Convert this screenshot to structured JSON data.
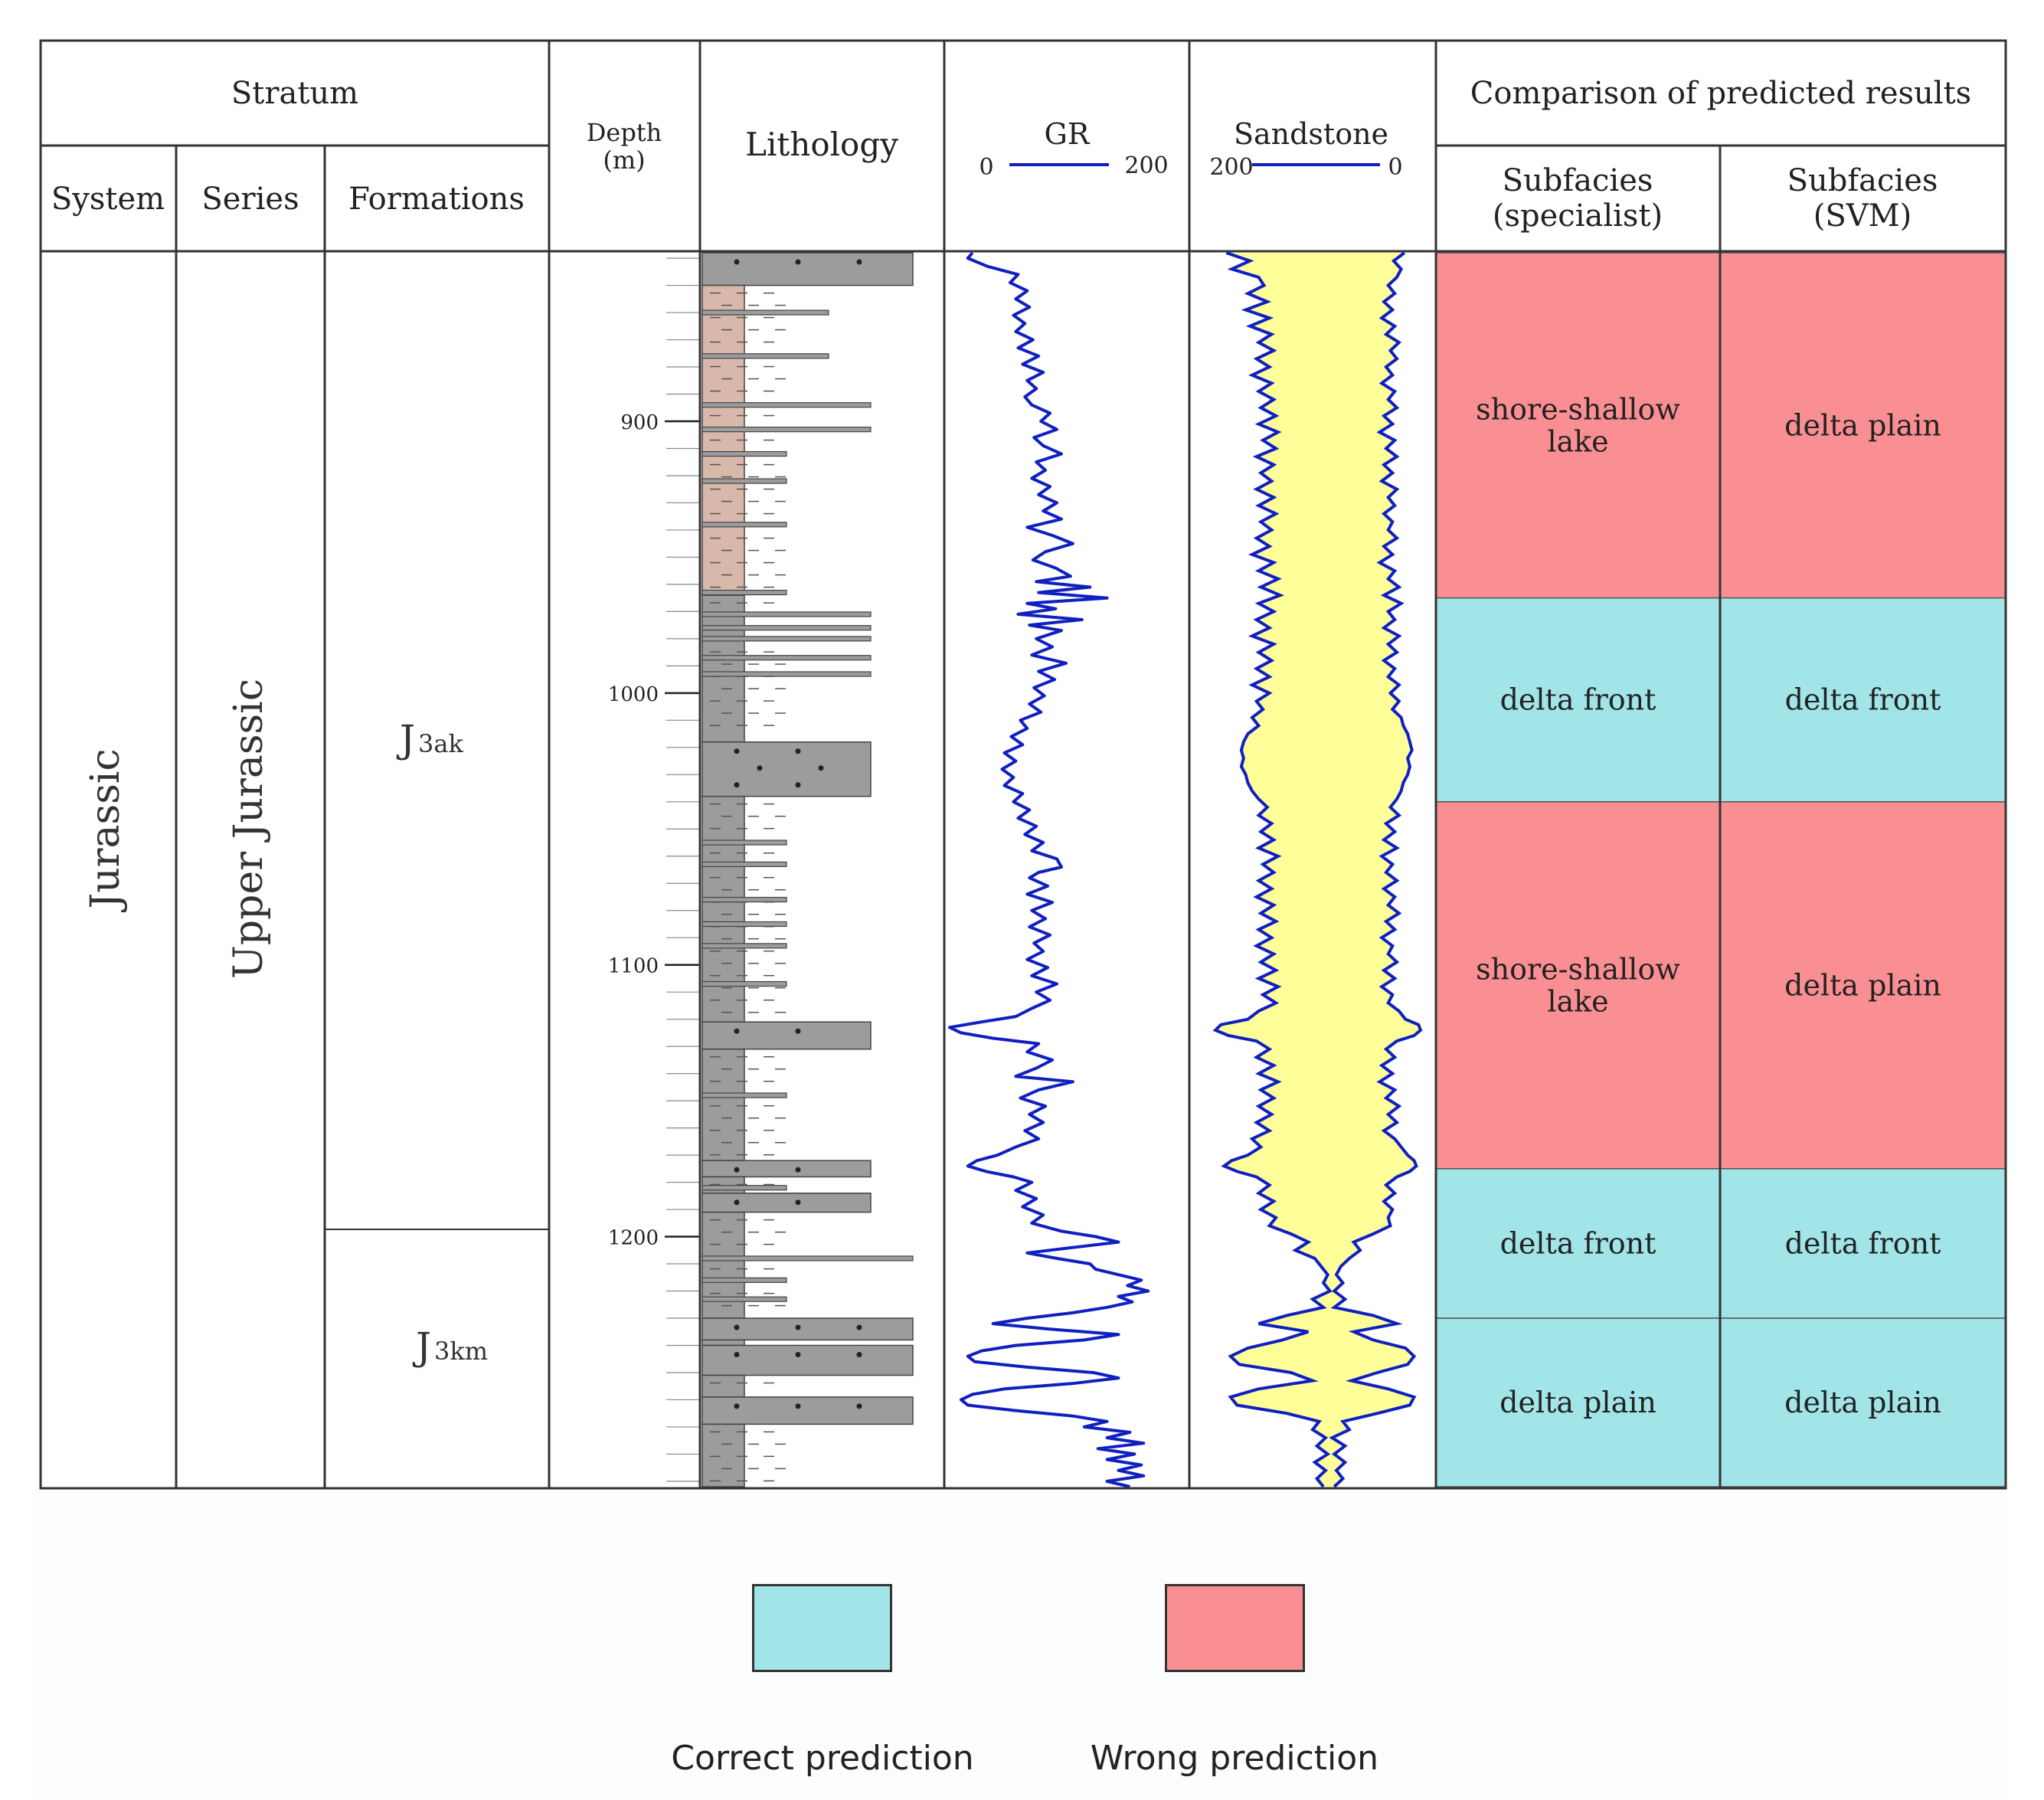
{
  "header": {
    "stratum": "Stratum",
    "system": "System",
    "series": "Series",
    "formations": "Formations",
    "depth": "Depth",
    "depth_unit": "(m)",
    "lithology": "Lithology",
    "gr": {
      "title": "GR",
      "min_label": "0",
      "max_label": "200"
    },
    "sandstone": {
      "title": "Sandstone",
      "left_label": "200",
      "right_label": "0"
    },
    "comparison": "Comparison of predicted results",
    "specialist_l1": "Subfacies",
    "specialist_l2": "(specialist)",
    "svm_l1": "Subfacies",
    "svm_l2": "(SVM)"
  },
  "column_values": {
    "system": "Jurassic",
    "series": "Upper Jurassic",
    "formations": [
      {
        "base": "J",
        "sub": "3ak"
      },
      {
        "base": "J",
        "sub": "3km"
      }
    ]
  },
  "depth_axis": {
    "min": 838,
    "max": 1292,
    "ticks": [
      "900",
      "1000",
      "1100",
      "1200"
    ]
  },
  "colors": {
    "correct": "#a2e5e9",
    "wrong": "#fa8f93",
    "sand_fill": "#ffff99",
    "curve": "#1020c0",
    "shale": "#d8b8aa",
    "mudstone": "#9c9c9c"
  },
  "facies": [
    {
      "top": 838,
      "bottom": 965,
      "specialist": [
        "shore-shallow",
        "lake"
      ],
      "svm": [
        "delta plain"
      ],
      "status": "wrong"
    },
    {
      "top": 965,
      "bottom": 1040,
      "specialist": [
        "delta front"
      ],
      "svm": [
        "delta front"
      ],
      "status": "correct"
    },
    {
      "top": 1040,
      "bottom": 1175,
      "specialist": [
        "shore-shallow",
        "lake"
      ],
      "svm": [
        "delta plain"
      ],
      "status": "wrong"
    },
    {
      "top": 1175,
      "bottom": 1230,
      "specialist": [
        "delta front"
      ],
      "svm": [
        "delta front"
      ],
      "status": "correct"
    },
    {
      "top": 1230,
      "bottom": 1292,
      "specialist": [
        "delta plain"
      ],
      "svm": [
        "delta plain"
      ],
      "status": "correct"
    }
  ],
  "lithology_beds": [
    {
      "top": 838,
      "bottom": 850,
      "type": "sandstone",
      "grain": 5
    },
    {
      "top": 850,
      "bottom": 964,
      "type": "shale",
      "grain": 1
    },
    {
      "top": 964,
      "bottom": 1018,
      "type": "mudstone",
      "grain": 1
    },
    {
      "top": 1018,
      "bottom": 1038,
      "type": "sandstone",
      "grain": 4
    },
    {
      "top": 1038,
      "bottom": 1121,
      "type": "mudstone",
      "grain": 1
    },
    {
      "top": 1121,
      "bottom": 1131,
      "type": "sandstone",
      "grain": 4
    },
    {
      "top": 1131,
      "bottom": 1172,
      "type": "mudstone",
      "grain": 1
    },
    {
      "top": 1172,
      "bottom": 1178,
      "type": "sandstone",
      "grain": 4
    },
    {
      "top": 1178,
      "bottom": 1184,
      "type": "mudstone",
      "grain": 1
    },
    {
      "top": 1184,
      "bottom": 1191,
      "type": "sandstone",
      "grain": 4
    },
    {
      "top": 1191,
      "bottom": 1230,
      "type": "mudstone",
      "grain": 1
    },
    {
      "top": 1230,
      "bottom": 1238,
      "type": "sandstone",
      "grain": 5
    },
    {
      "top": 1238,
      "bottom": 1240,
      "type": "mudstone",
      "grain": 1
    },
    {
      "top": 1240,
      "bottom": 1251,
      "type": "sandstone",
      "grain": 5
    },
    {
      "top": 1251,
      "bottom": 1259,
      "type": "mudstone",
      "grain": 1
    },
    {
      "top": 1259,
      "bottom": 1269,
      "type": "sandstone",
      "grain": 5
    },
    {
      "top": 1269,
      "bottom": 1292,
      "type": "mudstone",
      "grain": 1
    }
  ],
  "thin_beds": [
    {
      "depth": 860,
      "grain": 3
    },
    {
      "depth": 876,
      "grain": 3
    },
    {
      "depth": 894,
      "grain": 4
    },
    {
      "depth": 903,
      "grain": 4
    },
    {
      "depth": 912,
      "grain": 2
    },
    {
      "depth": 922,
      "grain": 2
    },
    {
      "depth": 938,
      "grain": 2
    },
    {
      "depth": 963,
      "grain": 2
    },
    {
      "depth": 971,
      "grain": 4
    },
    {
      "depth": 976,
      "grain": 4
    },
    {
      "depth": 980,
      "grain": 4
    },
    {
      "depth": 987,
      "grain": 4
    },
    {
      "depth": 993,
      "grain": 4
    },
    {
      "depth": 1055,
      "grain": 2
    },
    {
      "depth": 1063,
      "grain": 2
    },
    {
      "depth": 1076,
      "grain": 2
    },
    {
      "depth": 1085,
      "grain": 2
    },
    {
      "depth": 1093,
      "grain": 2
    },
    {
      "depth": 1107,
      "grain": 2
    },
    {
      "depth": 1148,
      "grain": 2
    },
    {
      "depth": 1182,
      "grain": 2
    },
    {
      "depth": 1208,
      "grain": 5
    },
    {
      "depth": 1216,
      "grain": 2
    },
    {
      "depth": 1223,
      "grain": 2
    }
  ],
  "gr_log": [
    [
      838,
      22
    ],
    [
      840,
      18
    ],
    [
      843,
      35
    ],
    [
      846,
      62
    ],
    [
      849,
      55
    ],
    [
      852,
      70
    ],
    [
      855,
      60
    ],
    [
      858,
      72
    ],
    [
      861,
      58
    ],
    [
      864,
      68
    ],
    [
      867,
      60
    ],
    [
      870,
      75
    ],
    [
      873,
      62
    ],
    [
      876,
      80
    ],
    [
      879,
      66
    ],
    [
      882,
      84
    ],
    [
      885,
      70
    ],
    [
      888,
      78
    ],
    [
      891,
      68
    ],
    [
      894,
      74
    ],
    [
      897,
      90
    ],
    [
      900,
      82
    ],
    [
      903,
      96
    ],
    [
      906,
      76
    ],
    [
      909,
      84
    ],
    [
      912,
      100
    ],
    [
      915,
      78
    ],
    [
      918,
      86
    ],
    [
      921,
      74
    ],
    [
      924,
      90
    ],
    [
      927,
      80
    ],
    [
      930,
      96
    ],
    [
      933,
      84
    ],
    [
      936,
      100
    ],
    [
      939,
      70
    ],
    [
      942,
      92
    ],
    [
      945,
      110
    ],
    [
      948,
      86
    ],
    [
      951,
      75
    ],
    [
      954,
      95
    ],
    [
      957,
      108
    ],
    [
      959,
      78
    ],
    [
      961,
      125
    ],
    [
      963,
      80
    ],
    [
      965,
      140
    ],
    [
      967,
      70
    ],
    [
      969,
      95
    ],
    [
      971,
      62
    ],
    [
      973,
      118
    ],
    [
      975,
      72
    ],
    [
      977,
      100
    ],
    [
      980,
      78
    ],
    [
      983,
      92
    ],
    [
      986,
      74
    ],
    [
      989,
      104
    ],
    [
      992,
      80
    ],
    [
      995,
      94
    ],
    [
      998,
      76
    ],
    [
      1001,
      85
    ],
    [
      1004,
      72
    ],
    [
      1007,
      82
    ],
    [
      1010,
      64
    ],
    [
      1013,
      70
    ],
    [
      1016,
      56
    ],
    [
      1019,
      66
    ],
    [
      1022,
      50
    ],
    [
      1025,
      60
    ],
    [
      1028,
      48
    ],
    [
      1031,
      58
    ],
    [
      1034,
      50
    ],
    [
      1037,
      66
    ],
    [
      1040,
      58
    ],
    [
      1043,
      72
    ],
    [
      1046,
      62
    ],
    [
      1049,
      78
    ],
    [
      1052,
      68
    ],
    [
      1055,
      84
    ],
    [
      1058,
      74
    ],
    [
      1061,
      96
    ],
    [
      1064,
      100
    ],
    [
      1066,
      80
    ],
    [
      1068,
      72
    ],
    [
      1071,
      88
    ],
    [
      1074,
      70
    ],
    [
      1077,
      92
    ],
    [
      1080,
      74
    ],
    [
      1083,
      86
    ],
    [
      1086,
      72
    ],
    [
      1089,
      90
    ],
    [
      1092,
      76
    ],
    [
      1095,
      84
    ],
    [
      1098,
      70
    ],
    [
      1101,
      88
    ],
    [
      1104,
      74
    ],
    [
      1107,
      96
    ],
    [
      1110,
      78
    ],
    [
      1113,
      90
    ],
    [
      1116,
      74
    ],
    [
      1119,
      60
    ],
    [
      1121,
      30
    ],
    [
      1123,
      2
    ],
    [
      1125,
      12
    ],
    [
      1127,
      40
    ],
    [
      1129,
      80
    ],
    [
      1132,
      70
    ],
    [
      1135,
      92
    ],
    [
      1138,
      78
    ],
    [
      1141,
      60
    ],
    [
      1143,
      110
    ],
    [
      1146,
      80
    ],
    [
      1149,
      64
    ],
    [
      1152,
      86
    ],
    [
      1155,
      72
    ],
    [
      1158,
      84
    ],
    [
      1161,
      68
    ],
    [
      1164,
      80
    ],
    [
      1167,
      60
    ],
    [
      1170,
      44
    ],
    [
      1172,
      26
    ],
    [
      1174,
      18
    ],
    [
      1176,
      34
    ],
    [
      1178,
      58
    ],
    [
      1180,
      74
    ],
    [
      1183,
      60
    ],
    [
      1186,
      78
    ],
    [
      1189,
      66
    ],
    [
      1192,
      84
    ],
    [
      1195,
      74
    ],
    [
      1198,
      100
    ],
    [
      1200,
      130
    ],
    [
      1202,
      150
    ],
    [
      1204,
      110
    ],
    [
      1206,
      70
    ],
    [
      1208,
      96
    ],
    [
      1210,
      125
    ],
    [
      1212,
      130
    ],
    [
      1214,
      150
    ],
    [
      1216,
      170
    ],
    [
      1218,
      158
    ],
    [
      1220,
      176
    ],
    [
      1222,
      150
    ],
    [
      1224,
      162
    ],
    [
      1226,
      140
    ],
    [
      1228,
      110
    ],
    [
      1230,
      70
    ],
    [
      1232,
      40
    ],
    [
      1234,
      90
    ],
    [
      1236,
      150
    ],
    [
      1238,
      120
    ],
    [
      1240,
      60
    ],
    [
      1242,
      30
    ],
    [
      1244,
      18
    ],
    [
      1246,
      24
    ],
    [
      1248,
      70
    ],
    [
      1250,
      128
    ],
    [
      1252,
      150
    ],
    [
      1254,
      110
    ],
    [
      1256,
      50
    ],
    [
      1258,
      22
    ],
    [
      1260,
      12
    ],
    [
      1262,
      18
    ],
    [
      1264,
      60
    ],
    [
      1266,
      110
    ],
    [
      1268,
      140
    ],
    [
      1270,
      120
    ],
    [
      1272,
      160
    ],
    [
      1274,
      140
    ],
    [
      1276,
      172
    ],
    [
      1278,
      132
    ],
    [
      1280,
      164
    ],
    [
      1282,
      140
    ],
    [
      1284,
      170
    ],
    [
      1286,
      150
    ],
    [
      1288,
      172
    ],
    [
      1290,
      140
    ],
    [
      1292,
      160
    ]
  ],
  "sand_log": [
    [
      838,
      180,
      15
    ],
    [
      841,
      158,
      25
    ],
    [
      844,
      175,
      18
    ],
    [
      847,
      150,
      22
    ],
    [
      850,
      145,
      30
    ],
    [
      853,
      160,
      24
    ],
    [
      856,
      142,
      34
    ],
    [
      859,
      162,
      26
    ],
    [
      862,
      140,
      36
    ],
    [
      865,
      158,
      24
    ],
    [
      868,
      138,
      32
    ],
    [
      871,
      150,
      20
    ],
    [
      874,
      136,
      28
    ],
    [
      877,
      152,
      22
    ],
    [
      880,
      140,
      32
    ],
    [
      883,
      156,
      26
    ],
    [
      886,
      138,
      36
    ],
    [
      889,
      150,
      24
    ],
    [
      892,
      136,
      30
    ],
    [
      895,
      148,
      22
    ],
    [
      898,
      134,
      34
    ],
    [
      901,
      150,
      26
    ],
    [
      904,
      132,
      38
    ],
    [
      907,
      146,
      24
    ],
    [
      910,
      134,
      32
    ],
    [
      913,
      152,
      22
    ],
    [
      916,
      136,
      34
    ],
    [
      919,
      148,
      26
    ],
    [
      922,
      138,
      36
    ],
    [
      925,
      152,
      22
    ],
    [
      928,
      136,
      30
    ],
    [
      931,
      150,
      24
    ],
    [
      934,
      134,
      34
    ],
    [
      937,
      148,
      26
    ],
    [
      940,
      138,
      30
    ],
    [
      943,
      152,
      22
    ],
    [
      946,
      140,
      34
    ],
    [
      949,
      156,
      26
    ],
    [
      952,
      136,
      38
    ],
    [
      955,
      150,
      24
    ],
    [
      958,
      132,
      30
    ],
    [
      961,
      148,
      20
    ],
    [
      964,
      130,
      34
    ],
    [
      967,
      150,
      18
    ],
    [
      970,
      136,
      30
    ],
    [
      973,
      152,
      24
    ],
    [
      976,
      140,
      34
    ],
    [
      979,
      156,
      20
    ],
    [
      982,
      136,
      30
    ],
    [
      985,
      150,
      22
    ],
    [
      988,
      138,
      34
    ],
    [
      991,
      152,
      24
    ],
    [
      994,
      140,
      30
    ],
    [
      997,
      156,
      20
    ],
    [
      1000,
      140,
      28
    ],
    [
      1003,
      152,
      20
    ],
    [
      1006,
      146,
      26
    ],
    [
      1009,
      156,
      18
    ],
    [
      1012,
      150,
      16
    ],
    [
      1015,
      160,
      12
    ],
    [
      1018,
      164,
      10
    ],
    [
      1021,
      166,
      8
    ],
    [
      1024,
      164,
      12
    ],
    [
      1027,
      166,
      10
    ],
    [
      1030,
      162,
      12
    ],
    [
      1033,
      160,
      16
    ],
    [
      1036,
      156,
      18
    ],
    [
      1039,
      150,
      22
    ],
    [
      1042,
      142,
      28
    ],
    [
      1045,
      150,
      20
    ],
    [
      1048,
      138,
      32
    ],
    [
      1051,
      148,
      24
    ],
    [
      1054,
      136,
      34
    ],
    [
      1057,
      150,
      22
    ],
    [
      1060,
      132,
      36
    ],
    [
      1063,
      146,
      26
    ],
    [
      1066,
      136,
      32
    ],
    [
      1069,
      150,
      22
    ],
    [
      1072,
      138,
      34
    ],
    [
      1075,
      152,
      24
    ],
    [
      1078,
      136,
      30
    ],
    [
      1081,
      148,
      20
    ],
    [
      1084,
      134,
      32
    ],
    [
      1087,
      150,
      24
    ],
    [
      1090,
      138,
      36
    ],
    [
      1093,
      152,
      26
    ],
    [
      1096,
      136,
      30
    ],
    [
      1099,
      148,
      22
    ],
    [
      1102,
      134,
      34
    ],
    [
      1105,
      150,
      24
    ],
    [
      1108,
      132,
      36
    ],
    [
      1111,
      146,
      26
    ],
    [
      1114,
      134,
      30
    ],
    [
      1117,
      150,
      20
    ],
    [
      1120,
      160,
      14
    ],
    [
      1122,
      185,
      2
    ],
    [
      1124,
      190,
      0
    ],
    [
      1126,
      178,
      6
    ],
    [
      1128,
      152,
      22
    ],
    [
      1131,
      140,
      32
    ],
    [
      1134,
      152,
      24
    ],
    [
      1137,
      136,
      36
    ],
    [
      1140,
      150,
      26
    ],
    [
      1143,
      132,
      38
    ],
    [
      1146,
      148,
      24
    ],
    [
      1149,
      136,
      32
    ],
    [
      1152,
      150,
      20
    ],
    [
      1155,
      138,
      30
    ],
    [
      1158,
      152,
      22
    ],
    [
      1161,
      140,
      34
    ],
    [
      1164,
      156,
      24
    ],
    [
      1167,
      148,
      18
    ],
    [
      1170,
      160,
      12
    ],
    [
      1172,
      175,
      6
    ],
    [
      1174,
      182,
      4
    ],
    [
      1176,
      170,
      10
    ],
    [
      1178,
      152,
      22
    ],
    [
      1181,
      140,
      32
    ],
    [
      1184,
      150,
      24
    ],
    [
      1187,
      136,
      34
    ],
    [
      1190,
      148,
      26
    ],
    [
      1193,
      134,
      30
    ],
    [
      1196,
      140,
      28
    ],
    [
      1199,
      120,
      44
    ],
    [
      1202,
      104,
      62
    ],
    [
      1205,
      116,
      56
    ],
    [
      1208,
      98,
      66
    ],
    [
      1211,
      92,
      74
    ],
    [
      1214,
      86,
      78
    ],
    [
      1217,
      90,
      72
    ],
    [
      1220,
      84,
      80
    ],
    [
      1223,
      100,
      70
    ],
    [
      1226,
      90,
      80
    ],
    [
      1229,
      124,
      44
    ],
    [
      1232,
      150,
      22
    ],
    [
      1235,
      104,
      62
    ],
    [
      1238,
      128,
      44
    ],
    [
      1241,
      160,
      14
    ],
    [
      1244,
      176,
      6
    ],
    [
      1247,
      168,
      12
    ],
    [
      1250,
      120,
      40
    ],
    [
      1253,
      100,
      64
    ],
    [
      1256,
      150,
      30
    ],
    [
      1259,
      176,
      6
    ],
    [
      1262,
      170,
      10
    ],
    [
      1265,
      124,
      40
    ],
    [
      1268,
      94,
      72
    ],
    [
      1271,
      100,
      66
    ],
    [
      1274,
      88,
      82
    ],
    [
      1277,
      96,
      70
    ],
    [
      1280,
      86,
      80
    ],
    [
      1283,
      98,
      70
    ],
    [
      1286,
      88,
      78
    ],
    [
      1289,
      96,
      72
    ],
    [
      1292,
      90,
      80
    ]
  ],
  "legend": {
    "correct": "Correct prediction",
    "wrong": "Wrong prediction"
  }
}
